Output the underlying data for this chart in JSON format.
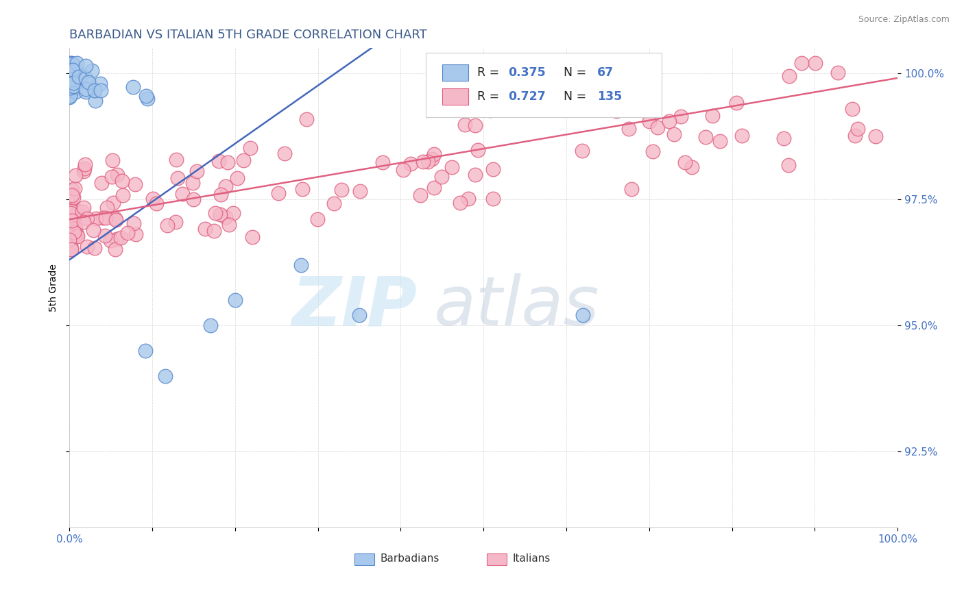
{
  "title": "BARBADIAN VS ITALIAN 5TH GRADE CORRELATION CHART",
  "source_text": "Source: ZipAtlas.com",
  "ylabel": "5th Grade",
  "xlim": [
    0.0,
    1.0
  ],
  "ylim": [
    0.91,
    1.005
  ],
  "yticks": [
    0.925,
    0.95,
    0.975,
    1.0
  ],
  "ytick_labels": [
    "92.5%",
    "95.0%",
    "97.5%",
    "100.0%"
  ],
  "barbadian_color": "#A8C8EC",
  "italian_color": "#F5B8C8",
  "barbadian_edge_color": "#5588CC",
  "italian_edge_color": "#E06080",
  "barbadian_line_color": "#4466BB",
  "italian_line_color": "#E06080",
  "title_color": "#3A5A8A",
  "title_fontsize": 13,
  "watermark_zip": "ZIP",
  "watermark_atlas": "atlas",
  "ytick_color": "#4472C4",
  "xtick_color": "#4472C4"
}
